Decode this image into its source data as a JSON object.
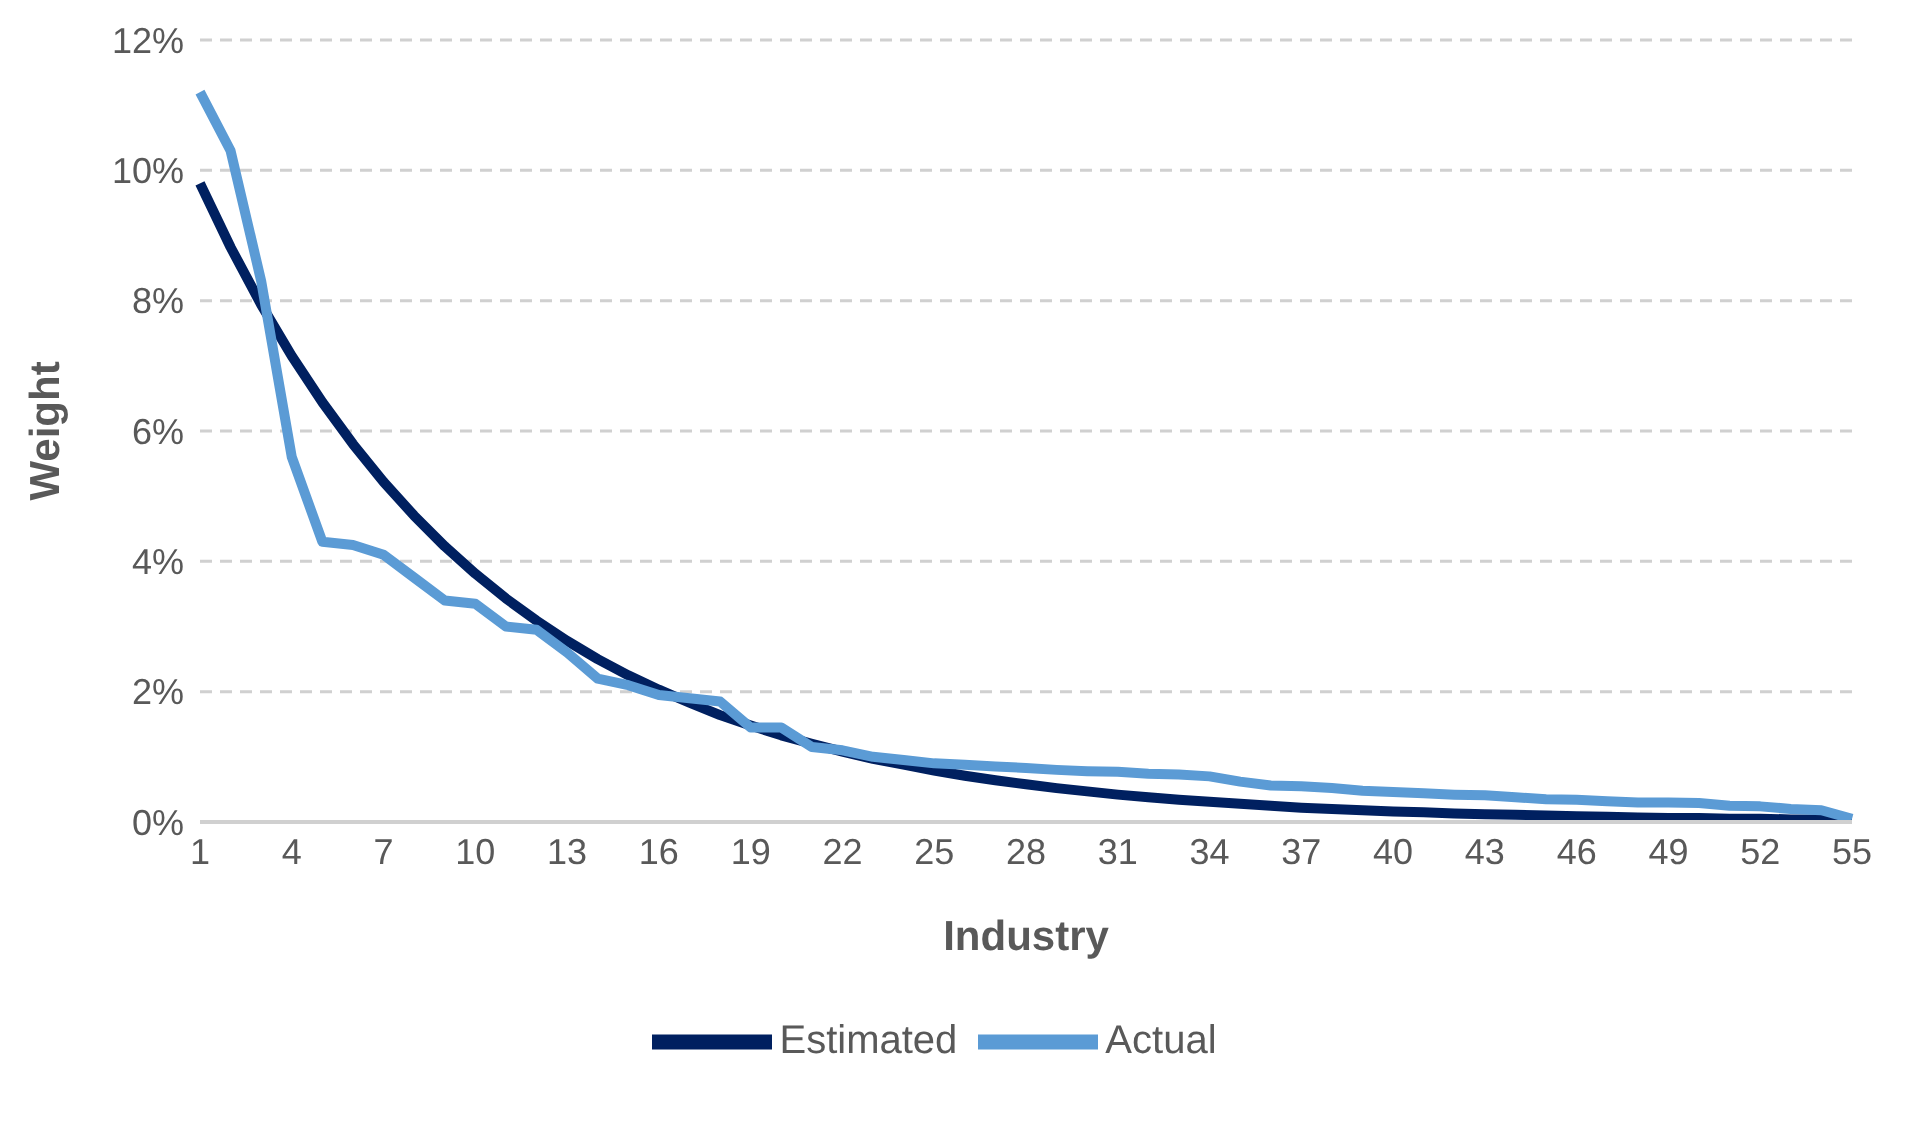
{
  "chart_data": {
    "type": "line",
    "xlabel": "Industry",
    "ylabel": "Weight",
    "categories": [
      "1",
      null,
      null,
      "4",
      null,
      null,
      "7",
      null,
      null,
      "10",
      null,
      null,
      "13",
      null,
      null,
      "16",
      null,
      null,
      "19",
      null,
      null,
      "22",
      null,
      null,
      "25",
      null,
      null,
      "28",
      null,
      null,
      "31",
      null,
      null,
      "34",
      null,
      null,
      "37",
      null,
      null,
      "40",
      null,
      null,
      "43",
      null,
      null,
      "46",
      null,
      null,
      "49",
      null,
      null,
      "52",
      null,
      null,
      "55"
    ],
    "series": [
      {
        "name": "Estimated",
        "color": "#002060",
        "values": [
          9.8,
          8.82,
          7.94,
          7.15,
          6.44,
          5.8,
          5.22,
          4.7,
          4.23,
          3.81,
          3.43,
          3.09,
          2.78,
          2.5,
          2.25,
          2.03,
          1.83,
          1.64,
          1.48,
          1.33,
          1.2,
          1.08,
          0.97,
          0.88,
          0.79,
          0.71,
          0.64,
          0.58,
          0.52,
          0.47,
          0.42,
          0.38,
          0.34,
          0.31,
          0.28,
          0.25,
          0.22,
          0.2,
          0.18,
          0.16,
          0.15,
          0.13,
          0.12,
          0.11,
          0.1,
          0.09,
          0.08,
          0.07,
          0.06,
          0.06,
          0.05,
          0.05,
          0.04,
          0.04,
          0.03
        ]
      },
      {
        "name": "Actual",
        "color": "#5b9bd5",
        "values": [
          11.2,
          10.3,
          8.3,
          5.6,
          4.3,
          4.25,
          4.1,
          3.75,
          3.4,
          3.35,
          3.0,
          2.95,
          2.6,
          2.2,
          2.1,
          1.95,
          1.9,
          1.85,
          1.45,
          1.45,
          1.15,
          1.1,
          1.0,
          0.95,
          0.9,
          0.88,
          0.85,
          0.83,
          0.8,
          0.78,
          0.77,
          0.74,
          0.73,
          0.7,
          0.62,
          0.56,
          0.55,
          0.52,
          0.48,
          0.46,
          0.44,
          0.42,
          0.41,
          0.38,
          0.35,
          0.34,
          0.32,
          0.3,
          0.3,
          0.29,
          0.25,
          0.24,
          0.2,
          0.18,
          0.05
        ]
      }
    ],
    "ylim": [
      0,
      12
    ],
    "yticks": [
      {
        "value": 0,
        "label": "0%"
      },
      {
        "value": 2,
        "label": "2%"
      },
      {
        "value": 4,
        "label": "4%"
      },
      {
        "value": 6,
        "label": "6%"
      },
      {
        "value": 8,
        "label": "8%"
      },
      {
        "value": 10,
        "label": "10%"
      },
      {
        "value": 12,
        "label": "12%"
      }
    ],
    "grid": "y",
    "legend": "bottom",
    "marker": "none",
    "line_style": "solid"
  }
}
